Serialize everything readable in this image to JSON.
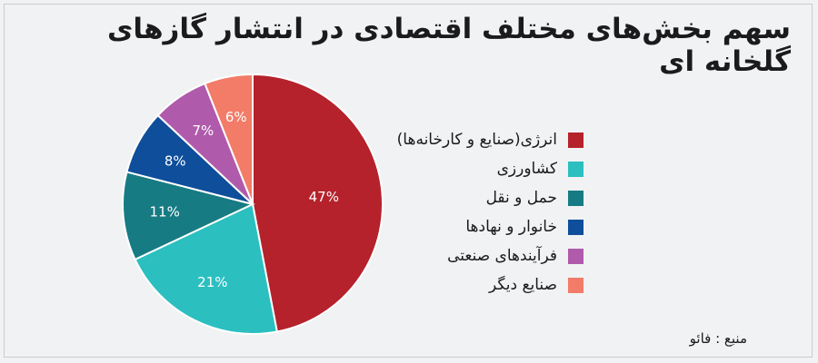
{
  "chart_data": {
    "type": "pie",
    "title": "سهم بخش‌های مختلف اقتصادی در انتشار گازهای گلخانه ای",
    "source": "منبع : فائو",
    "slices": [
      {
        "label": "انرژی(صنایع و کارخانه‌ها)",
        "value": 47,
        "value_label": "47%",
        "color": "#b5222b"
      },
      {
        "label": "کشاورزی",
        "value": 21,
        "value_label": "21%",
        "color": "#2bbfc0"
      },
      {
        "label": "حمل و نقل",
        "value": 11,
        "value_label": "11%",
        "color": "#177b83"
      },
      {
        "label": "خانوار و نهادها",
        "value": 8,
        "value_label": "8%",
        "color": "#0e4e9a"
      },
      {
        "label": "فرآیندهای صنعتی",
        "value": 7,
        "value_label": "7%",
        "color": "#b05aac"
      },
      {
        "label": "صنایع دیگر",
        "value": 6,
        "value_label": "6%",
        "color": "#f27c68"
      }
    ],
    "legend_position": "right"
  }
}
